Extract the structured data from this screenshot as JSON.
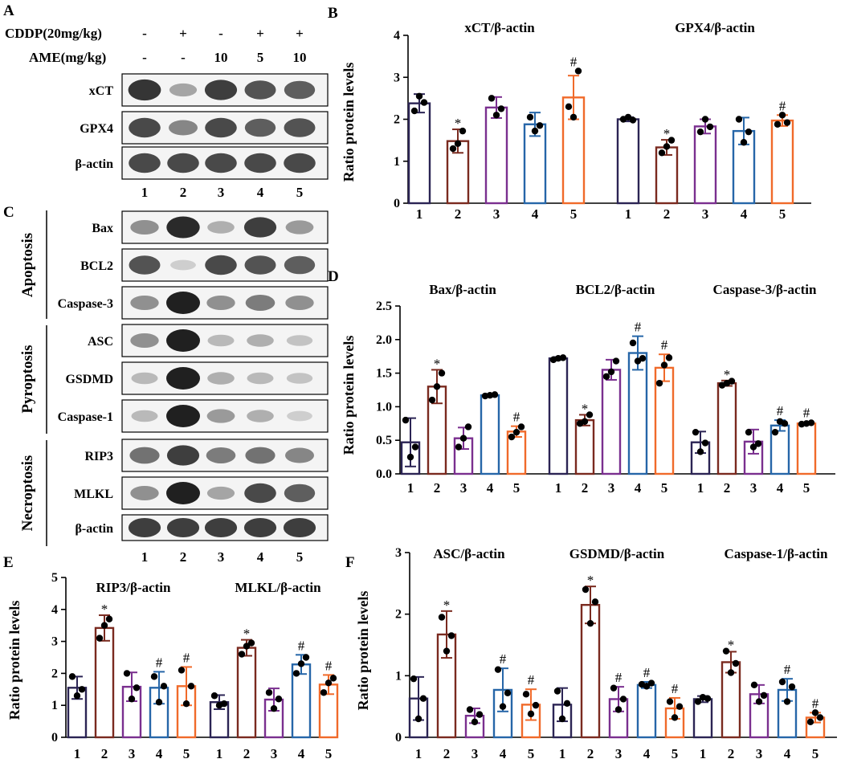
{
  "panel_letters": [
    "A",
    "B",
    "C",
    "D",
    "E",
    "F"
  ],
  "blot_a": {
    "conditions": [
      {
        "label": "CDDP(20mg/kg)",
        "values": [
          "-",
          "+",
          "-",
          "+",
          "+"
        ]
      },
      {
        "label": "AME(mg/kg)",
        "values": [
          "-",
          "-",
          "10",
          "5",
          "10"
        ]
      }
    ],
    "bands": [
      "xCT",
      "GPX4",
      "β-actin"
    ],
    "lanes": [
      "1",
      "2",
      "3",
      "4",
      "5"
    ]
  },
  "blot_c": {
    "groups": [
      "Apoptosis",
      "Pyroptosis",
      "Necroptosis"
    ],
    "bands": [
      "Bax",
      "BCL2",
      "Caspase-3",
      "ASC",
      "GSDMD",
      "Caspase-1",
      "RIP3",
      "MLKL",
      "β-actin"
    ],
    "lanes": [
      "1",
      "2",
      "3",
      "4",
      "5"
    ]
  },
  "colors": {
    "bar_1": "#2b2454",
    "bar_2": "#7a2a1f",
    "bar_3": "#7a2f8f",
    "bar_4": "#2666a8",
    "bar_5": "#f06a2a"
  },
  "chart_data": [
    {
      "panel": "B",
      "type": "bar",
      "ylabel": "Ratio protein levels",
      "ylim": [
        0,
        4
      ],
      "yticks": [
        "0",
        "1",
        "2",
        "3",
        "4"
      ],
      "categories": [
        "1",
        "2",
        "3",
        "4",
        "5"
      ],
      "groups": [
        {
          "title": "xCT/β-actin",
          "values": [
            2.38,
            1.48,
            2.28,
            1.88,
            2.52
          ],
          "errors": [
            0.22,
            0.28,
            0.25,
            0.28,
            0.52
          ],
          "marks": [
            "",
            "*",
            "",
            "",
            "#"
          ],
          "points": [
            [
              2.2,
              2.55,
              2.4
            ],
            [
              1.3,
              1.42,
              1.72
            ],
            [
              2.5,
              2.1,
              2.25
            ],
            [
              2.05,
              1.72,
              1.85
            ],
            [
              2.3,
              2.05,
              3.15
            ]
          ]
        },
        {
          "title": "GPX4/β-actin",
          "values": [
            2.0,
            1.33,
            1.83,
            1.72,
            1.97
          ],
          "errors": [
            0.05,
            0.18,
            0.17,
            0.32,
            0.13
          ],
          "marks": [
            "",
            "*",
            "",
            "",
            "#"
          ],
          "points": [
            [
              2.0,
              2.05,
              1.98
            ],
            [
              1.2,
              1.35,
              1.5
            ],
            [
              1.7,
              2.0,
              1.82
            ],
            [
              2.0,
              1.45,
              1.7
            ],
            [
              1.88,
              2.1,
              1.92
            ]
          ]
        }
      ]
    },
    {
      "panel": "D",
      "type": "bar",
      "ylabel": "Ratio protein levels",
      "ylim": [
        0,
        2.5
      ],
      "yticks": [
        "0.0",
        "0.5",
        "1.0",
        "1.5",
        "2.0",
        "2.5"
      ],
      "categories": [
        "1",
        "2",
        "3",
        "4",
        "5"
      ],
      "groups": [
        {
          "title": "Bax/β-actin",
          "values": [
            0.47,
            1.3,
            0.53,
            1.17,
            0.63
          ],
          "errors": [
            0.36,
            0.25,
            0.16,
            0.02,
            0.08
          ],
          "marks": [
            "",
            "*",
            "",
            "",
            "#"
          ],
          "points": [
            [
              0.8,
              0.25,
              0.4
            ],
            [
              1.1,
              1.3,
              1.5
            ],
            [
              0.4,
              0.53,
              0.7
            ],
            [
              1.16,
              1.17,
              1.18
            ],
            [
              0.55,
              0.62,
              0.7
            ]
          ]
        },
        {
          "title": "BCL2/β-actin",
          "values": [
            1.72,
            0.8,
            1.55,
            1.8,
            1.58
          ],
          "errors": [
            0.02,
            0.08,
            0.15,
            0.25,
            0.2
          ],
          "marks": [
            "",
            "*",
            "",
            "#",
            "#"
          ],
          "points": [
            [
              1.7,
              1.72,
              1.73
            ],
            [
              0.75,
              0.78,
              0.88
            ],
            [
              1.45,
              1.52,
              1.68
            ],
            [
              1.95,
              1.68,
              1.72
            ],
            [
              1.35,
              1.62,
              1.73
            ]
          ]
        },
        {
          "title": "Caspase-3/β-actin",
          "values": [
            0.47,
            1.35,
            0.48,
            0.72,
            0.75
          ],
          "errors": [
            0.16,
            0.04,
            0.18,
            0.08,
            0.02
          ],
          "marks": [
            "",
            "*",
            "",
            "#",
            "#"
          ],
          "points": [
            [
              0.62,
              0.33,
              0.46
            ],
            [
              1.32,
              1.35,
              1.38
            ],
            [
              0.62,
              0.4,
              0.45
            ],
            [
              0.62,
              0.78,
              0.75
            ],
            [
              0.74,
              0.75,
              0.76
            ]
          ]
        }
      ]
    },
    {
      "panel": "E",
      "type": "bar",
      "ylabel": "Ratio protein levels",
      "ylim": [
        0,
        5
      ],
      "yticks": [
        "0",
        "1",
        "2",
        "3",
        "4",
        "5"
      ],
      "categories": [
        "1",
        "2",
        "3",
        "4",
        "5"
      ],
      "groups": [
        {
          "title": "RIP3/β-actin",
          "values": [
            1.55,
            3.42,
            1.58,
            1.55,
            1.6
          ],
          "errors": [
            0.35,
            0.4,
            0.45,
            0.5,
            0.6
          ],
          "marks": [
            "",
            "*",
            "",
            "#",
            "#"
          ],
          "points": [
            [
              1.9,
              1.3,
              1.5
            ],
            [
              3.1,
              3.5,
              3.7
            ],
            [
              2.0,
              1.2,
              1.55
            ],
            [
              1.9,
              1.1,
              1.6
            ],
            [
              2.1,
              1.05,
              1.6
            ]
          ]
        },
        {
          "title": "MLKL/β-actin",
          "values": [
            1.1,
            2.8,
            1.18,
            2.28,
            1.65
          ],
          "errors": [
            0.22,
            0.25,
            0.35,
            0.3,
            0.3
          ],
          "marks": [
            "",
            "*",
            "",
            "#",
            "#"
          ],
          "points": [
            [
              1.3,
              1.0,
              1.05
            ],
            [
              2.6,
              2.85,
              2.95
            ],
            [
              1.4,
              0.9,
              1.2
            ],
            [
              2.0,
              2.3,
              2.5
            ],
            [
              1.4,
              1.7,
              1.85
            ]
          ]
        }
      ]
    },
    {
      "panel": "F",
      "type": "bar",
      "ylabel": "Ratio protein levels",
      "ylim": [
        0,
        3
      ],
      "yticks": [
        "0",
        "1",
        "2",
        "3"
      ],
      "categories": [
        "1",
        "2",
        "3",
        "4",
        "5"
      ],
      "groups": [
        {
          "title": "ASC/β-actin",
          "values": [
            0.63,
            1.67,
            0.35,
            0.77,
            0.53
          ],
          "errors": [
            0.35,
            0.38,
            0.12,
            0.35,
            0.25
          ],
          "marks": [
            "",
            "*",
            "",
            "#",
            "#"
          ],
          "points": [
            [
              0.95,
              0.3,
              0.63
            ],
            [
              1.95,
              1.4,
              1.65
            ],
            [
              0.45,
              0.25,
              0.37
            ],
            [
              1.1,
              0.5,
              0.72
            ],
            [
              0.7,
              0.38,
              0.52
            ]
          ]
        },
        {
          "title": "GSDMD/β-actin",
          "values": [
            0.53,
            2.15,
            0.62,
            0.85,
            0.47
          ],
          "errors": [
            0.27,
            0.3,
            0.2,
            0.05,
            0.17
          ],
          "marks": [
            "",
            "*",
            "#",
            "#",
            "#"
          ],
          "points": [
            [
              0.75,
              0.3,
              0.55
            ],
            [
              2.4,
              1.85,
              2.2
            ],
            [
              0.8,
              0.45,
              0.62
            ],
            [
              0.86,
              0.83,
              0.88
            ],
            [
              0.58,
              0.32,
              0.5
            ]
          ]
        },
        {
          "title": "Caspase-1/β-actin",
          "values": [
            0.62,
            1.22,
            0.7,
            0.77,
            0.32
          ],
          "errors": [
            0.05,
            0.17,
            0.15,
            0.18,
            0.08
          ],
          "marks": [
            "",
            "*",
            "",
            "#",
            "#"
          ],
          "points": [
            [
              0.58,
              0.65,
              0.63
            ],
            [
              1.4,
              1.05,
              1.2
            ],
            [
              0.85,
              0.58,
              0.68
            ],
            [
              0.9,
              0.58,
              0.82
            ],
            [
              0.25,
              0.4,
              0.32
            ]
          ]
        }
      ]
    }
  ]
}
